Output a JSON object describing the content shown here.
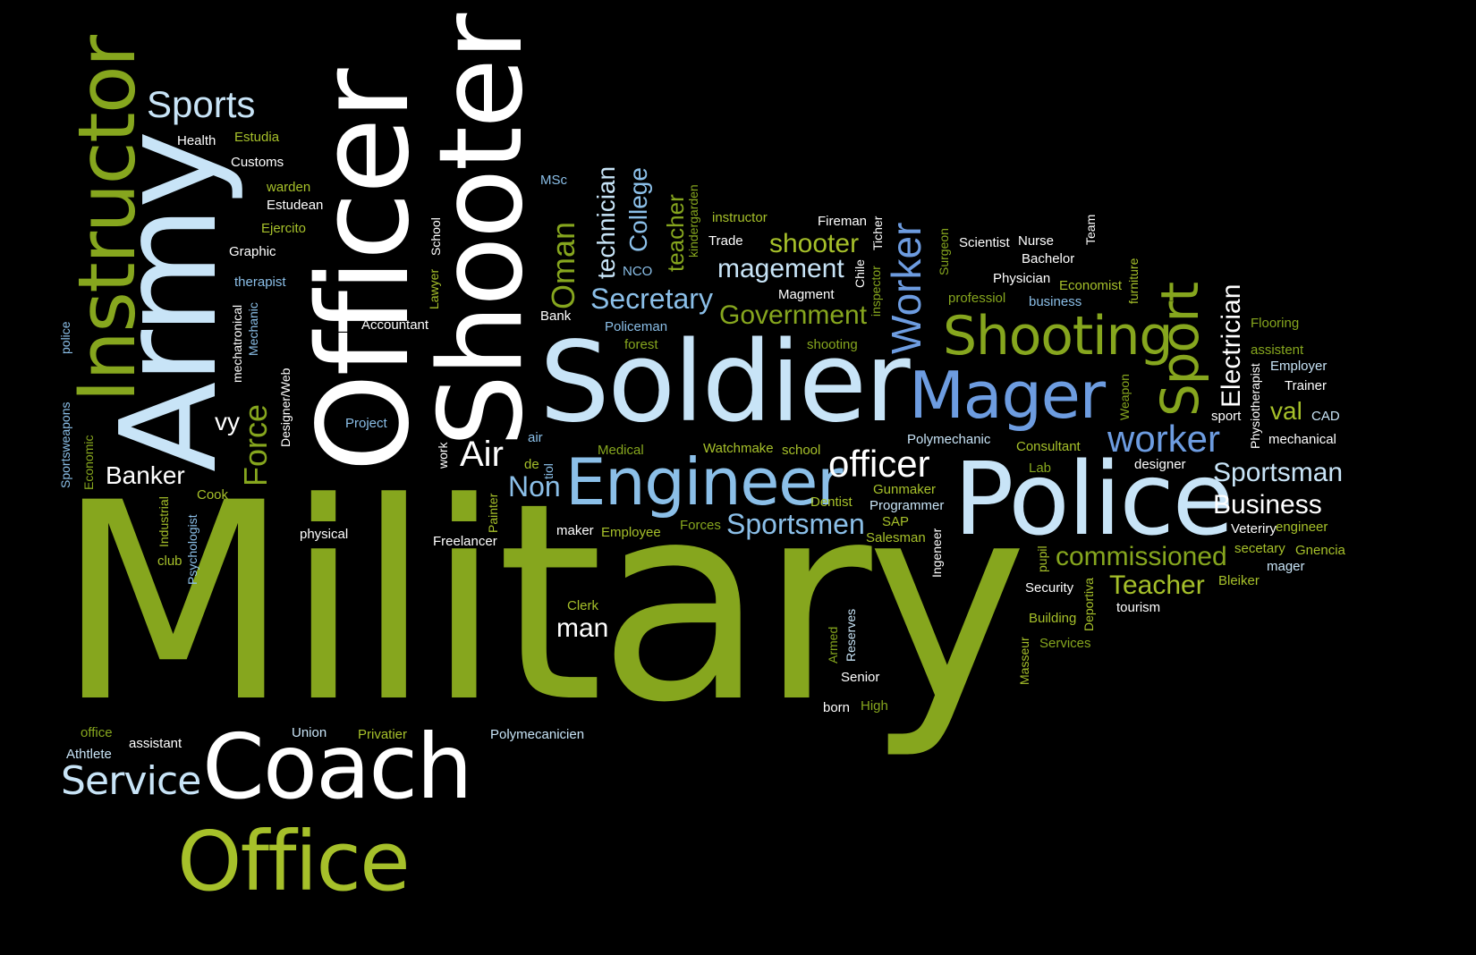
{
  "colors": {
    "background": "#000000",
    "green": "#86a61e",
    "light_green": "#a6c02a",
    "white": "#ffffff",
    "pale_blue": "#c8e4f7",
    "sky_blue": "#8bbfe8",
    "blue": "#6d9ce0"
  },
  "words": {
    "military": "Military",
    "soldier": "Soldier",
    "police": "Police",
    "army": "Army",
    "officer_big": "Officer",
    "shooter_big": "Shooter",
    "instructor": "Instructor",
    "coach": "Coach",
    "office": "Office",
    "engineer": "Engineer",
    "mager": "Mager",
    "shooting": "Shooting",
    "sport": "Sport",
    "service": "Service",
    "worker_lower": "worker",
    "worker_cap": "Worker",
    "sports": "Sports",
    "officer_lower": "officer",
    "air_big": "Air",
    "non": "Non",
    "force": "Force",
    "banker": "Banker",
    "secretary": "Secretary",
    "government": "Government",
    "magement": "magement",
    "shooter_lower": "shooter",
    "sportsmen": "Sportsmen",
    "sportsman": "Sportsman",
    "business_cap": "Business",
    "commissioned": "commissioned",
    "teacher_cap": "Teacher",
    "electrician": "Electrician",
    "oman": "Oman",
    "technician": "technician",
    "college": "College",
    "teacher_lower": "teacher",
    "man": "man",
    "vy": "vy",
    "val": "val",
    "health": "Health",
    "estudia": "Estudia",
    "customs": "Customs",
    "warden": "warden",
    "estudean": "Estudean",
    "ejercito": "Ejercito",
    "graphic": "Graphic",
    "therapist": "therapist",
    "police_small": "police",
    "mechatronical": "mechatronical",
    "mechanic": "Mechanic",
    "accountant": "Accountant",
    "project": "Project",
    "sportsweapons": "Sportsweapons",
    "economic": "Economic",
    "cook": "Cook",
    "industrial": "Industrial",
    "psychologist": "Psychologist",
    "club": "club",
    "physical": "physical",
    "designer_web": "Designer/Web",
    "school_v": "School",
    "lawyer": "Lawyer",
    "work": "work",
    "painter": "Painter",
    "air_small": "air",
    "de": "de",
    "tiol": "tiol",
    "msc": "MSc",
    "nco": "NCO",
    "bank": "Bank",
    "policeman": "Policeman",
    "forest": "forest",
    "medical": "Medical",
    "watchmake": "Watchmake",
    "school": "school",
    "maker": "maker",
    "employee": "Employee",
    "forces": "Forces",
    "freelancer": "Freelancer",
    "clerk": "Clerk",
    "instructor_small": "instructor",
    "kindergarden": "kindergarden",
    "trade": "Trade",
    "fireman": "Fireman",
    "ticher": "Ticher",
    "chile": "Chile",
    "inspector": "inspector",
    "magment": "Magment",
    "shooting_small": "shooting",
    "surgeon": "Surgeon",
    "scientist": "Scientist",
    "nurse": "Nurse",
    "team": "Team",
    "bachelor": "Bachelor",
    "physician": "Physician",
    "economist": "Economist",
    "professiol": "professiol",
    "business_small": "business",
    "furniture": "furniture",
    "flooring": "Flooring",
    "assistent": "assistent",
    "employer": "Employer",
    "physiotherapist": "Physiotherapist",
    "trainer": "Trainer",
    "weapon": "Weapon",
    "sport_small": "sport",
    "cad": "CAD",
    "mechanical": "mechanical",
    "polymechanic": "Polymechanic",
    "consultant": "Consultant",
    "lab": "Lab",
    "designer": "designer",
    "veteriry": "Veteriry",
    "engineer_small": "engineer",
    "secetary": "secetary",
    "gnencia": "Gnencia",
    "mager_small": "mager",
    "bleiker": "Bleiker",
    "tourism": "tourism",
    "security": "Security",
    "pupil": "pupil",
    "building": "Building",
    "deportiva": "Deportiva",
    "services": "Services",
    "masseur": "Masseur",
    "dentist": "Dentist",
    "gunmaker": "Gunmaker",
    "programmer": "Programmer",
    "sap": "SAP",
    "salesman": "Salesman",
    "ingeneer": "Ingeneer",
    "armed": "Armed",
    "reserves": "Reserves",
    "senior": "Senior",
    "born": "born",
    "high": "High",
    "union": "Union",
    "privatier": "Privatier",
    "polymecanicien": "Polymecanicien",
    "office_small": "office",
    "athtlete": "Athtlete",
    "assistant": "assistant"
  }
}
